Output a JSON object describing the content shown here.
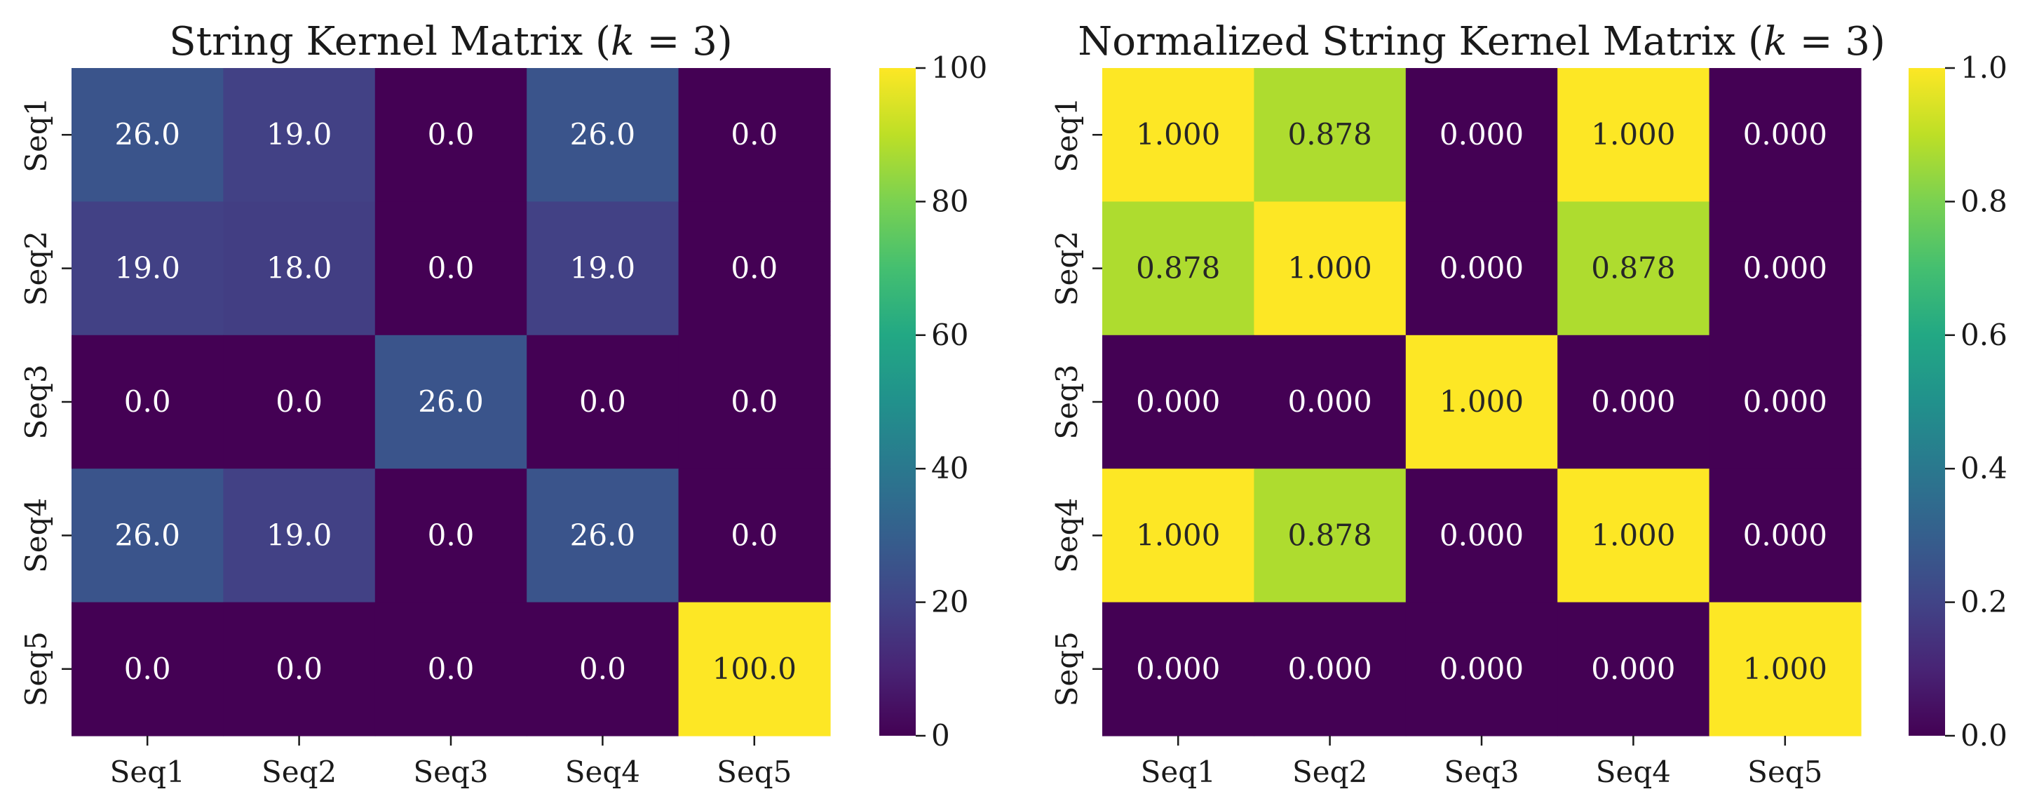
{
  "chart_data": [
    {
      "type": "heatmap",
      "title": "String Kernel Matrix (k = 3)",
      "title_main": "String Kernel Matrix (",
      "title_var": "k",
      "title_rest": " = 3)",
      "x_labels": [
        "Seq1",
        "Seq2",
        "Seq3",
        "Seq4",
        "Seq5"
      ],
      "y_labels": [
        "Seq1",
        "Seq2",
        "Seq3",
        "Seq4",
        "Seq5"
      ],
      "values": [
        [
          26.0,
          19.0,
          0.0,
          26.0,
          0.0
        ],
        [
          19.0,
          18.0,
          0.0,
          19.0,
          0.0
        ],
        [
          0.0,
          0.0,
          26.0,
          0.0,
          0.0
        ],
        [
          26.0,
          19.0,
          0.0,
          26.0,
          0.0
        ],
        [
          0.0,
          0.0,
          0.0,
          0.0,
          100.0
        ]
      ],
      "value_decimals": 1,
      "colormap": "viridis",
      "vmin": 0,
      "vmax": 100,
      "colorbar_ticks": [
        0,
        20,
        40,
        60,
        80,
        100
      ],
      "colorbar_tick_labels": [
        "0",
        "20",
        "40",
        "60",
        "80",
        "100"
      ]
    },
    {
      "type": "heatmap",
      "title": "Normalized String Kernel Matrix (k = 3)",
      "title_main": "Normalized String Kernel Matrix (",
      "title_var": "k",
      "title_rest": " = 3)",
      "x_labels": [
        "Seq1",
        "Seq2",
        "Seq3",
        "Seq4",
        "Seq5"
      ],
      "y_labels": [
        "Seq1",
        "Seq2",
        "Seq3",
        "Seq4",
        "Seq5"
      ],
      "values": [
        [
          1.0,
          0.878,
          0.0,
          1.0,
          0.0
        ],
        [
          0.878,
          1.0,
          0.0,
          0.878,
          0.0
        ],
        [
          0.0,
          0.0,
          1.0,
          0.0,
          0.0
        ],
        [
          1.0,
          0.878,
          0.0,
          1.0,
          0.0
        ],
        [
          0.0,
          0.0,
          0.0,
          0.0,
          1.0
        ]
      ],
      "value_decimals": 3,
      "colormap": "viridis",
      "vmin": 0,
      "vmax": 1,
      "colorbar_ticks": [
        0,
        0.2,
        0.4,
        0.6,
        0.8,
        1.0
      ],
      "colorbar_tick_labels": [
        "0.0",
        "0.2",
        "0.4",
        "0.6",
        "0.8",
        "1.0"
      ]
    }
  ]
}
